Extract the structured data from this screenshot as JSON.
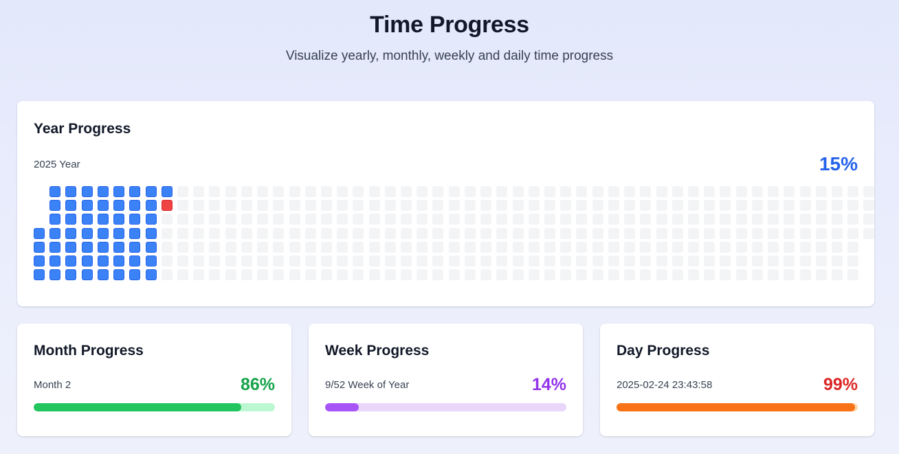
{
  "header": {
    "title": "Time Progress",
    "subtitle": "Visualize yearly, monthly, weekly and daily time progress"
  },
  "year": {
    "title": "Year Progress",
    "label": "2025 Year",
    "percent_text": "15%",
    "days_in_year": 365,
    "current_day": 55,
    "first_weekday_offset": 3,
    "colors": {
      "past": "#3b82f6",
      "today": "#ef4444",
      "future": "#f3f4f6",
      "percent": "#2563eb"
    }
  },
  "month": {
    "title": "Month Progress",
    "label": "Month 2",
    "percent_text": "86%",
    "progress": 0.86,
    "colors": {
      "fill": "#22c55e",
      "track": "#bbf7d0",
      "percent": "#16a34a"
    }
  },
  "week": {
    "title": "Week Progress",
    "label": "9/52 Week of Year",
    "percent_text": "14%",
    "progress": 0.14,
    "colors": {
      "fill": "#a855f7",
      "track": "#ead5fb",
      "percent": "#9333ea"
    }
  },
  "day": {
    "title": "Day Progress",
    "label": "2025-02-24 23:43:58",
    "percent_text": "99%",
    "progress": 0.99,
    "colors": {
      "fill": "#f97316",
      "track": "#fed7aa",
      "percent": "#dc2626"
    }
  }
}
